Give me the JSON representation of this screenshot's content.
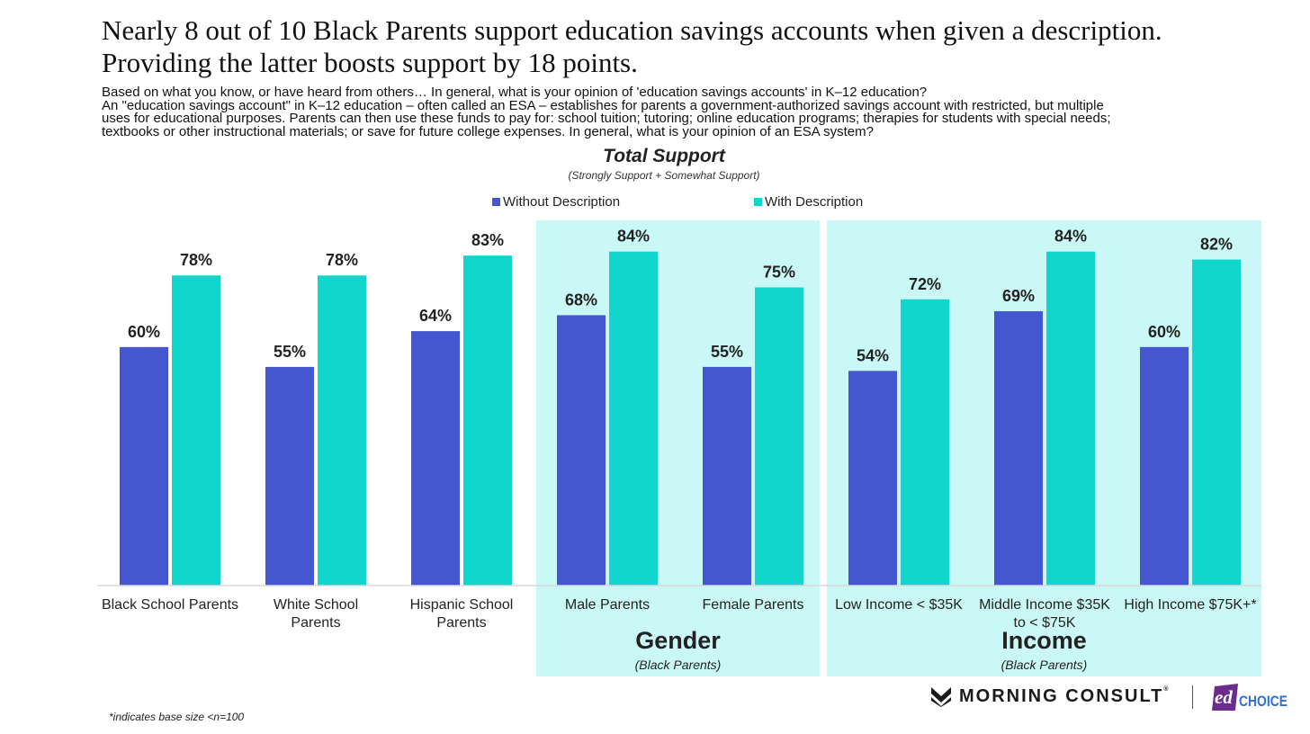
{
  "title_lines": [
    "Nearly 8 out of 10 Black Parents support education savings accounts when given a description.",
    "Providing the latter boosts support by 18 points."
  ],
  "question_lines": [
    "Based on what you know, or have heard from others… In general, what is your opinion of 'education savings accounts' in K–12 education?",
    "An \"education savings account\" in K–12 education – often called an ESA – establishes for parents a government-authorized savings account with restricted, but multiple",
    "uses for educational purposes. Parents can then use these funds to pay for: school tuition; tutoring; online education programs; therapies for students with special needs;",
    "textbooks or other instructional materials; or save for future college expenses. In general, what is your opinion of an ESA system?"
  ],
  "footnote": "*indicates base size <n=100",
  "logos": {
    "morning_consult": "MORNING CONSULT",
    "morning_consult_mark": "®",
    "edchoice_ed": "ed",
    "edchoice_choice": "CHOICE"
  },
  "colors": {
    "without": "#4557cf",
    "with": "#12d6cb",
    "panel": "#c9f8f6"
  },
  "chart_data": {
    "type": "bar",
    "title": "Total Support",
    "subtitle": "(Strongly Support + Somewhat Support)",
    "categories": [
      "Black School Parents",
      "White School Parents",
      "Hispanic School Parents",
      "Male Parents",
      "Female Parents",
      "Low Income < $35K",
      "Middle Income $35K to < $75K",
      "High Income $75K+*"
    ],
    "category_lines": [
      [
        "Black School Parents"
      ],
      [
        "White School",
        "Parents"
      ],
      [
        "Hispanic School",
        "Parents"
      ],
      [
        "Male Parents"
      ],
      [
        "Female Parents"
      ],
      [
        "Low Income < $35K"
      ],
      [
        "Middle Income $35K",
        "to < $75K"
      ],
      [
        "High Income $75K+*"
      ]
    ],
    "series": [
      {
        "name": "Without Description",
        "values": [
          60,
          55,
          64,
          68,
          55,
          54,
          69,
          60
        ]
      },
      {
        "name": "With Description",
        "values": [
          78,
          78,
          83,
          84,
          75,
          72,
          84,
          82
        ]
      }
    ],
    "value_suffix": "%",
    "ylim": [
      0,
      100
    ],
    "grid": false,
    "legend_position": "top-center",
    "groups": [
      {
        "label": "Gender",
        "sublabel": "(Black Parents)",
        "categories": [
          3,
          4
        ]
      },
      {
        "label": "Income",
        "sublabel": "(Black Parents)",
        "categories": [
          5,
          6,
          7
        ]
      }
    ]
  }
}
